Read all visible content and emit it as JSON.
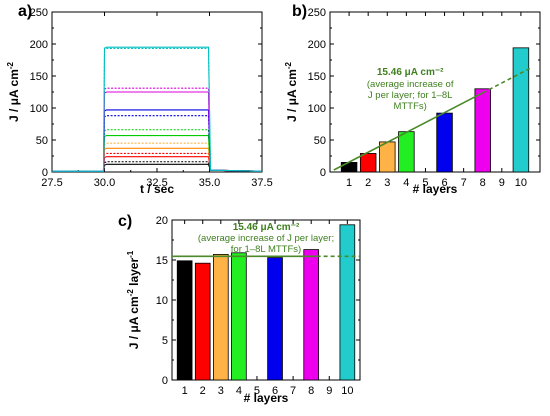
{
  "colors": {
    "fit": "#4a8a2a"
  },
  "chart_data": [
    {
      "type": "line",
      "panel_label": "a)",
      "xlabel": "t / sec",
      "ylabel": "J / μA cm",
      "ylabel_sup": "-2",
      "xlim": [
        27.5,
        37.5
      ],
      "ylim": [
        0,
        250
      ],
      "xticks": [
        "27.5",
        "30.0",
        "32.5",
        "35.0",
        "37.5"
      ],
      "yticks": [
        "0",
        "50",
        "100",
        "150",
        "200",
        "250"
      ],
      "pulse": {
        "on": 30.0,
        "off": 35.0
      },
      "series": [
        {
          "color": "#000000",
          "style": "solid",
          "value": 12
        },
        {
          "color": "#000000",
          "style": "dotted",
          "value": 16
        },
        {
          "color": "#ff0000",
          "style": "solid",
          "value": 24
        },
        {
          "color": "#ff0000",
          "style": "dotted",
          "value": 29
        },
        {
          "color": "#ff8800",
          "style": "solid",
          "value": 37
        },
        {
          "color": "#ffb347",
          "style": "dotted",
          "value": 45
        },
        {
          "color": "#00cc00",
          "style": "solid",
          "value": 57
        },
        {
          "color": "#00cc00",
          "style": "dotted",
          "value": 66
        },
        {
          "color": "#0000dd",
          "style": "dotted",
          "value": 88
        },
        {
          "color": "#0000dd",
          "style": "solid",
          "value": 97
        },
        {
          "color": "#dd00dd",
          "style": "solid",
          "value": 125
        },
        {
          "color": "#dd00dd",
          "style": "dotted",
          "value": 131
        },
        {
          "color": "#00c0c0",
          "style": "dotted",
          "value": 193
        },
        {
          "color": "#00c0c0",
          "style": "solid",
          "value": 195
        }
      ]
    },
    {
      "type": "bar",
      "panel_label": "b)",
      "xlabel": "# layers",
      "ylabel": "J / μA cm",
      "ylabel_sup": "-2",
      "xlim": [
        0,
        11
      ],
      "ylim": [
        0,
        250
      ],
      "xticks": [
        "1",
        "2",
        "3",
        "4",
        "5",
        "6",
        "7",
        "8",
        "9",
        "10"
      ],
      "yticks": [
        "0",
        "50",
        "100",
        "150",
        "200",
        "250"
      ],
      "bars": [
        {
          "x": 1,
          "value": 15,
          "color": "#000000"
        },
        {
          "x": 2,
          "value": 29,
          "color": "#ff0000"
        },
        {
          "x": 3,
          "value": 47,
          "color": "#ffb347"
        },
        {
          "x": 4,
          "value": 63,
          "color": "#22ee22"
        },
        {
          "x": 6,
          "value": 92,
          "color": "#0000ee"
        },
        {
          "x": 8,
          "value": 130,
          "color": "#ee00ee"
        },
        {
          "x": 10,
          "value": 194,
          "color": "#22cccc"
        }
      ],
      "fit": {
        "slope": 15.46,
        "intercept": 0,
        "solid_to": 8,
        "dashed_to": 10.6
      },
      "annotation": [
        "15.46 μA cm⁻²",
        "(average increase of",
        "J per layer; for 1‒8L",
        "MTTFs)"
      ]
    },
    {
      "type": "bar",
      "panel_label": "c)",
      "xlabel": "# layers",
      "ylabel": "J / μA cm",
      "ylabel_sup": "-2",
      "ylabel_tail": " layer",
      "ylabel_sup2": "-1",
      "xlim": [
        0.3,
        10.7
      ],
      "ylim": [
        0,
        20
      ],
      "xticks": [
        "1",
        "2",
        "3",
        "4",
        "5",
        "6",
        "7",
        "8",
        "9",
        "10"
      ],
      "yticks": [
        "0",
        "5",
        "10",
        "15",
        "20"
      ],
      "bars": [
        {
          "x": 1,
          "value": 14.9,
          "color": "#000000"
        },
        {
          "x": 2,
          "value": 14.6,
          "color": "#ff0000"
        },
        {
          "x": 3,
          "value": 15.7,
          "color": "#ffb347"
        },
        {
          "x": 4,
          "value": 15.9,
          "color": "#22ee22"
        },
        {
          "x": 6,
          "value": 15.3,
          "color": "#0000ee"
        },
        {
          "x": 8,
          "value": 16.3,
          "color": "#ee00ee"
        },
        {
          "x": 10,
          "value": 19.4,
          "color": "#22cccc"
        }
      ],
      "hline": {
        "value": 15.46,
        "solid_to": 8.3
      },
      "annotation": [
        "15.46 μA cm⁻²",
        "(average increase of J per layer;",
        "for 1‒8L MTTFs)"
      ]
    }
  ]
}
